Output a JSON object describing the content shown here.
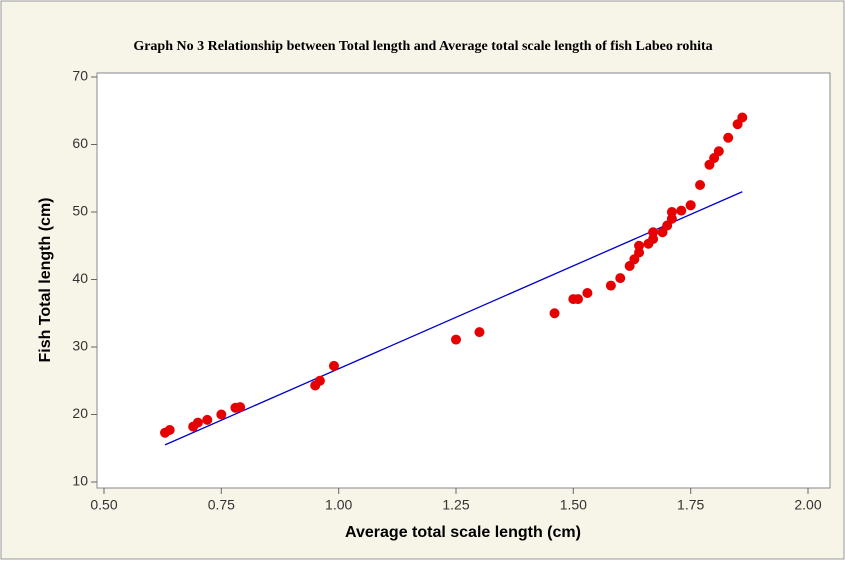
{
  "chart_data": {
    "type": "scatter",
    "title": "Graph No 3 Relationship between Total length and Average total scale length of fish Labeo rohita",
    "xlabel": "Average total scale length (cm)",
    "ylabel": "Fish Total length (cm)",
    "color": "#e60000",
    "x": [
      0.63,
      0.64,
      0.69,
      0.7,
      0.72,
      0.75,
      0.78,
      0.79,
      0.95,
      0.96,
      0.99,
      1.25,
      1.3,
      1.46,
      1.5,
      1.51,
      1.53,
      1.58,
      1.6,
      1.62,
      1.63,
      1.64,
      1.64,
      1.66,
      1.67,
      1.67,
      1.69,
      1.7,
      1.71,
      1.71,
      1.73,
      1.75,
      1.75,
      1.77,
      1.79,
      1.8,
      1.81,
      1.83,
      1.85,
      1.86
    ],
    "values": [
      17.3,
      17.7,
      18.2,
      18.8,
      19.2,
      20.0,
      21.0,
      21.1,
      24.3,
      25.0,
      27.2,
      31.1,
      32.2,
      35.0,
      37.1,
      37.1,
      38.0,
      39.1,
      40.2,
      42.0,
      43.0,
      44.0,
      45.0,
      45.3,
      46.0,
      47.0,
      47.0,
      48.0,
      49.0,
      50.0,
      50.2,
      51.0,
      51.0,
      54.0,
      57.0,
      58.0,
      59.0,
      61.0,
      63.0,
      64.0
    ],
    "fit_line": {
      "x": [
        0.63,
        1.86
      ],
      "y": [
        15.5,
        53.0
      ],
      "color": "#0000cc"
    },
    "xlim": [
      0.5,
      2.0
    ],
    "xticks": [
      {
        "value": 0.5,
        "label": "0.50"
      },
      {
        "value": 0.75,
        "label": "0.75"
      },
      {
        "value": 1.0,
        "label": "1.00"
      },
      {
        "value": 1.25,
        "label": "1.25"
      },
      {
        "value": 1.5,
        "label": "1.50"
      },
      {
        "value": 1.75,
        "label": "1.75"
      },
      {
        "value": 2.0,
        "label": "2.00"
      }
    ],
    "ylim": [
      10,
      70
    ],
    "yticks": [
      10,
      20,
      30,
      40,
      50,
      60,
      70
    ]
  }
}
